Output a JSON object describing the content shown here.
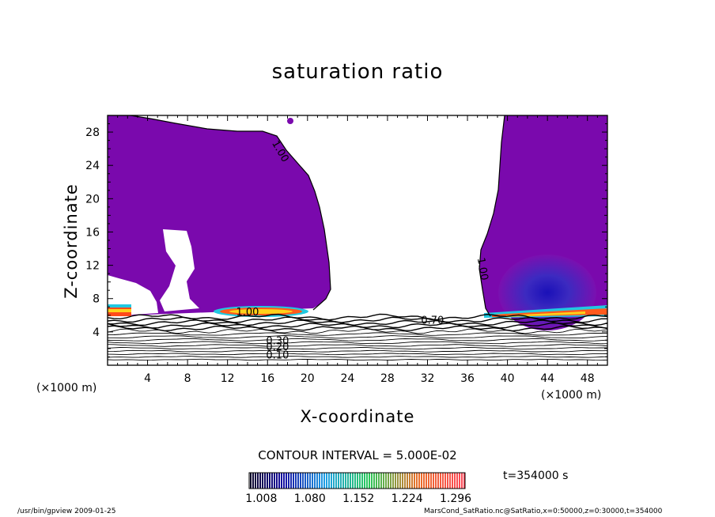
{
  "chart_data": {
    "type": "contour",
    "title": "saturation ratio",
    "xlabel": "X-coordinate",
    "ylabel": "Z-coordinate",
    "x_unit": "(×1000 m)",
    "z_unit": "(×1000 m)",
    "xlim": [
      0,
      50
    ],
    "ylim": [
      0,
      30
    ],
    "x_ticks": [
      4,
      8,
      12,
      16,
      20,
      24,
      28,
      32,
      36,
      40,
      44,
      48
    ],
    "y_ticks": [
      4,
      8,
      12,
      16,
      20,
      24,
      28
    ],
    "contour_interval": "CONTOUR INTERVAL = 5.000E-02",
    "contour_labels": [
      {
        "text": "1.00",
        "x": 17.0,
        "z": 25.5
      },
      {
        "text": "1.00",
        "x": 37.2,
        "z": 11.5
      },
      {
        "text": "1.00",
        "x": 14.0,
        "z": 6.0
      },
      {
        "text": "0.70",
        "x": 32.5,
        "z": 5.0
      },
      {
        "text": "0.30",
        "x": 17.0,
        "z": 2.5
      },
      {
        "text": "0.20",
        "x": 17.0,
        "z": 1.8
      },
      {
        "text": "0.10",
        "x": 17.0,
        "z": 0.8
      }
    ],
    "colorbar": {
      "ticks": [
        "1.008",
        "1.080",
        "1.152",
        "1.224",
        "1.296"
      ],
      "min": 0.99,
      "max": 1.31,
      "tick_values": [
        1.008,
        1.08,
        1.152,
        1.224,
        1.296
      ]
    },
    "time_label": "t=354000  s",
    "grid": false,
    "legend": "colorbar-bottom"
  },
  "footer": {
    "left": "/usr/bin/gpview   2009-01-25",
    "right": "MarsCond_SatRatio.nc@SatRatio,x=0:50000,z=0:30000,t=354000"
  }
}
